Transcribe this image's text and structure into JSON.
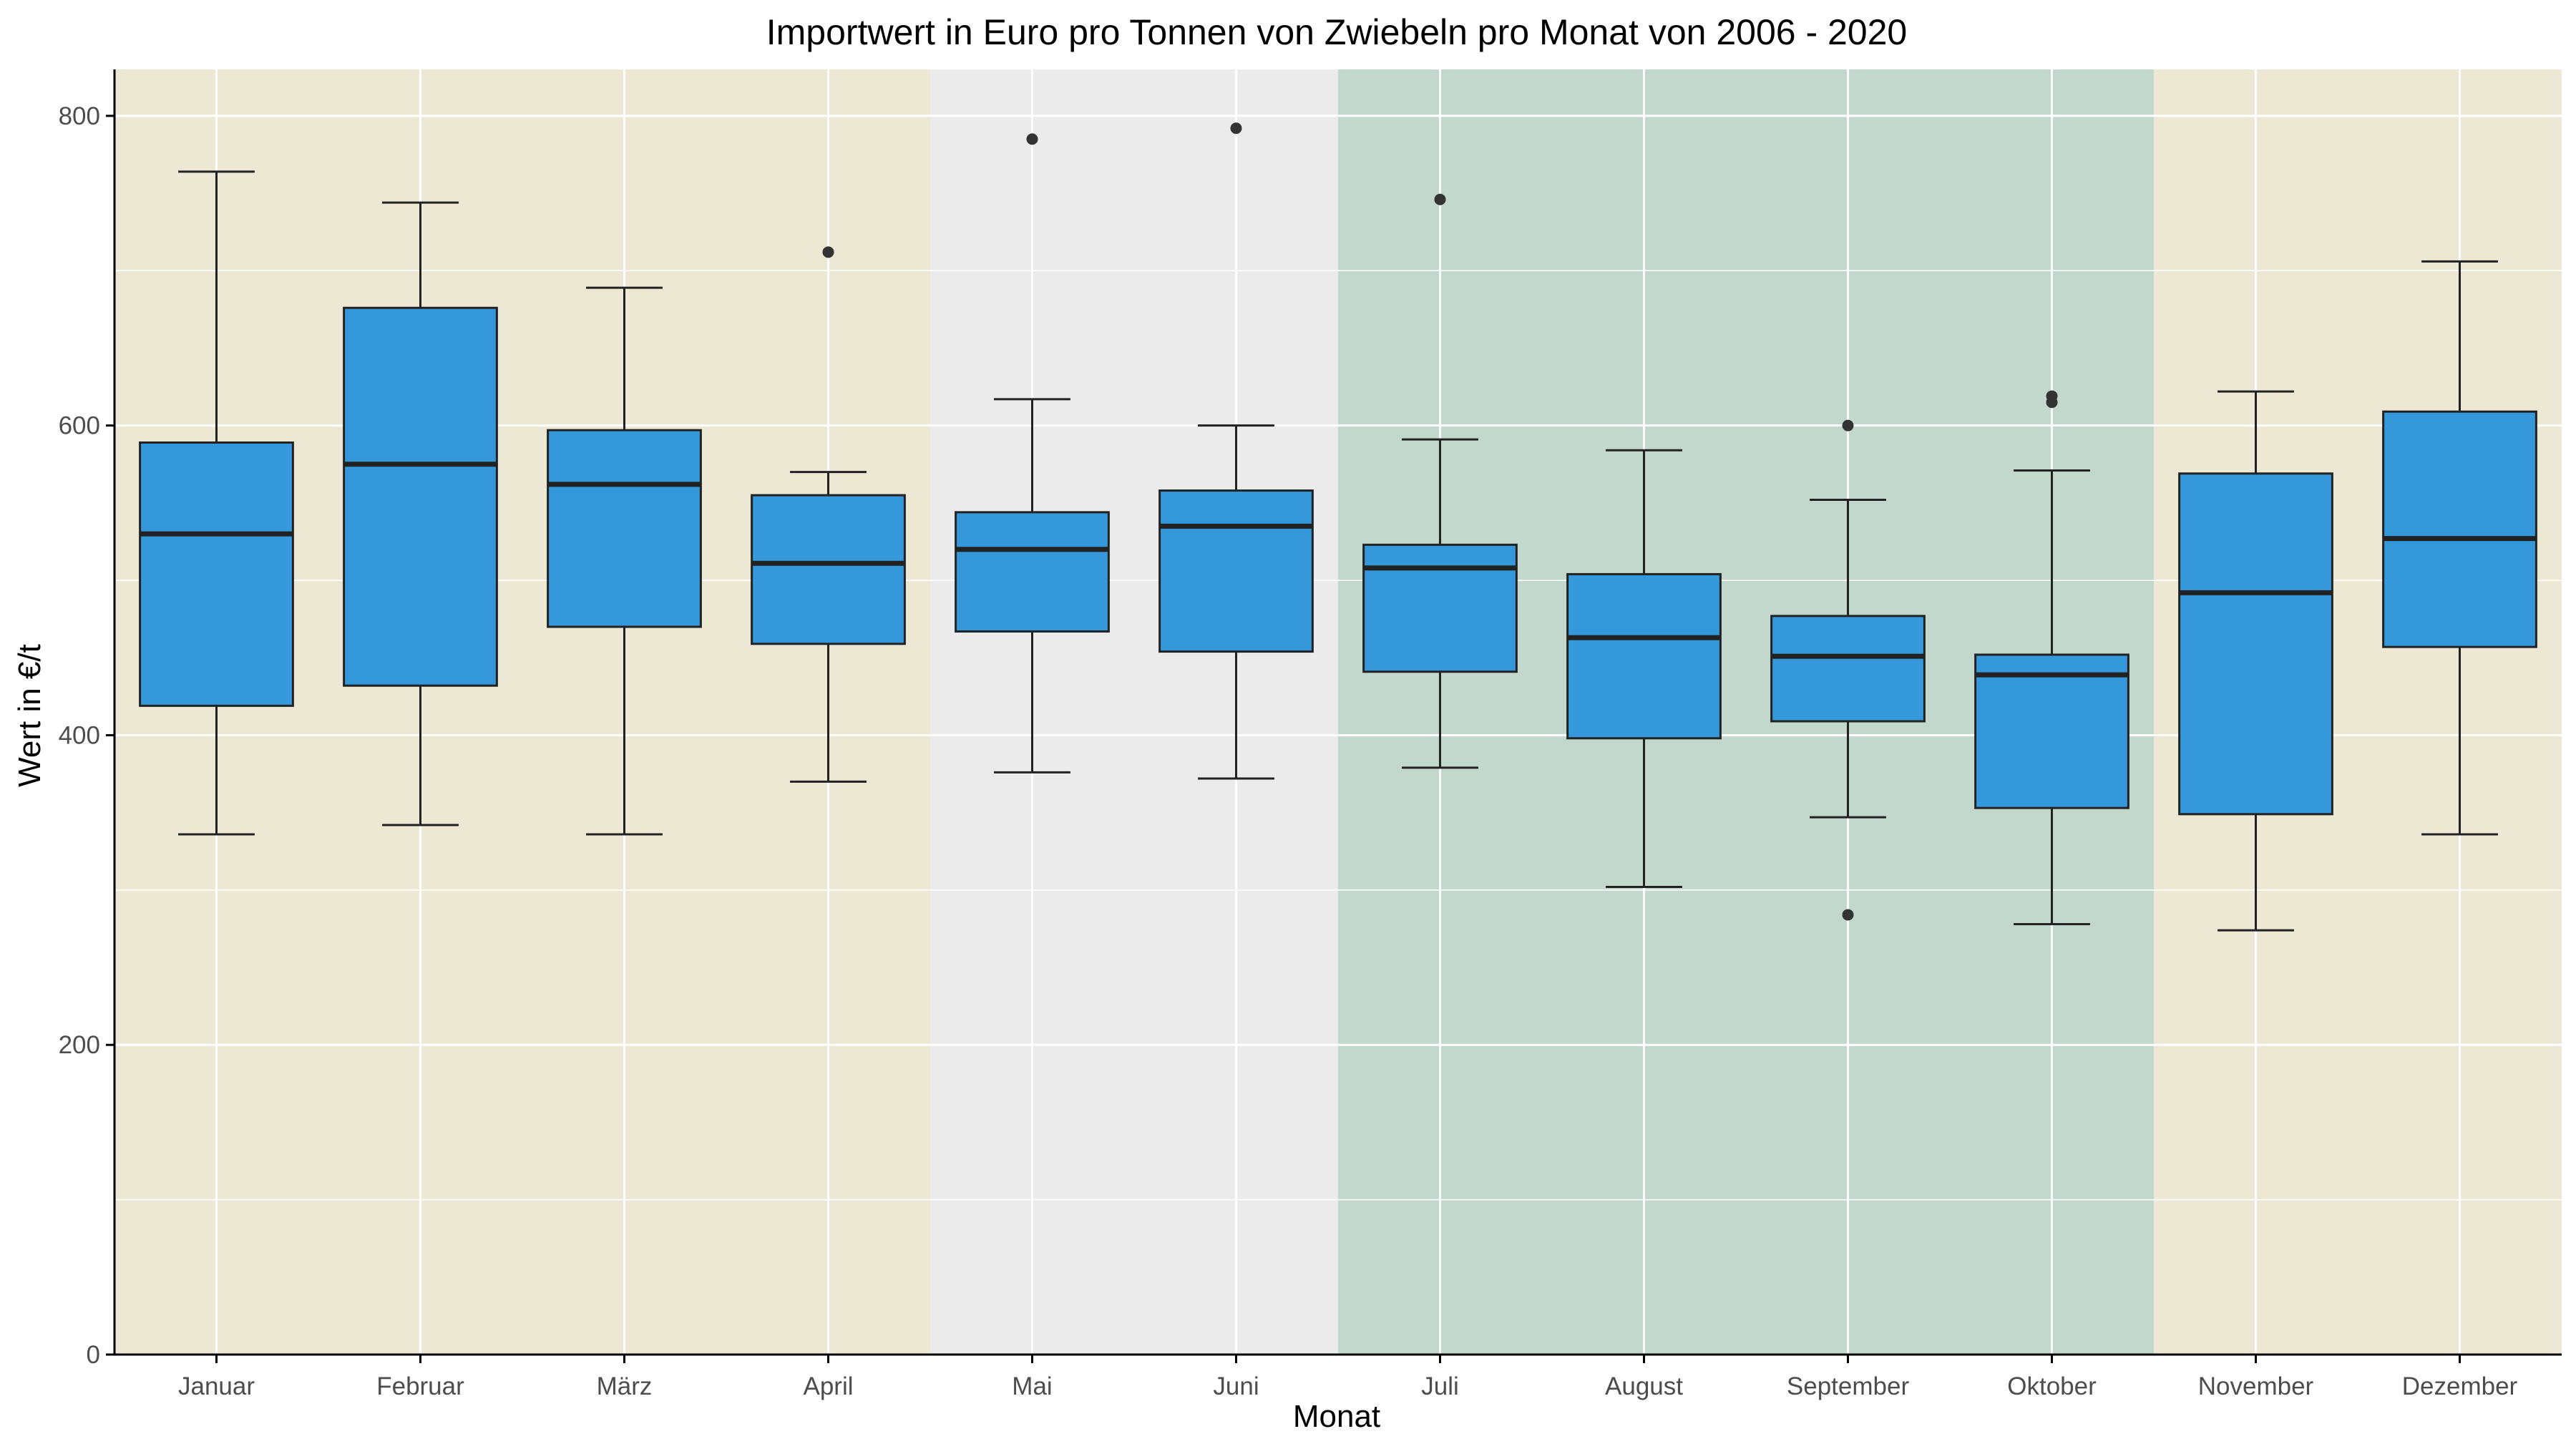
{
  "chart_data": {
    "type": "box",
    "title": "Importwert in Euro pro Tonnen von Zwiebeln pro Monat von 2006 - 2020",
    "xlabel": "Monat",
    "ylabel": "Wert in €/t",
    "ylim": [
      0,
      830
    ],
    "yticks": [
      0,
      200,
      400,
      600,
      800
    ],
    "grid": true,
    "box_color": "#3498db",
    "background_bands": [
      {
        "from": "Januar",
        "to": "April",
        "color": "#ede8d4"
      },
      {
        "from": "Mai",
        "to": "Juni",
        "color": "#ebebeb"
      },
      {
        "from": "Juli",
        "to": "Oktober",
        "color": "#c2d8cd"
      },
      {
        "from": "November",
        "to": "Dezember",
        "color": "#ede8d4"
      }
    ],
    "categories": [
      "Januar",
      "Februar",
      "März",
      "April",
      "Mai",
      "Juni",
      "Juli",
      "August",
      "September",
      "Oktober",
      "November",
      "Dezember"
    ],
    "boxes": [
      {
        "category": "Januar",
        "whisker_low": 336,
        "q1": 419,
        "median": 530,
        "q3": 589,
        "whisker_high": 764,
        "outliers": []
      },
      {
        "category": "Februar",
        "whisker_low": 342,
        "q1": 432,
        "median": 575,
        "q3": 676,
        "whisker_high": 744,
        "outliers": []
      },
      {
        "category": "März",
        "whisker_low": 336,
        "q1": 470,
        "median": 562,
        "q3": 597,
        "whisker_high": 689,
        "outliers": []
      },
      {
        "category": "April",
        "whisker_low": 370,
        "q1": 459,
        "median": 511,
        "q3": 555,
        "whisker_high": 570,
        "outliers": [
          712
        ]
      },
      {
        "category": "Mai",
        "whisker_low": 376,
        "q1": 467,
        "median": 520,
        "q3": 544,
        "whisker_high": 617,
        "outliers": [
          785
        ]
      },
      {
        "category": "Juni",
        "whisker_low": 372,
        "q1": 454,
        "median": 535,
        "q3": 558,
        "whisker_high": 600,
        "outliers": [
          792
        ]
      },
      {
        "category": "Juli",
        "whisker_low": 379,
        "q1": 441,
        "median": 508,
        "q3": 523,
        "whisker_high": 591,
        "outliers": [
          746
        ]
      },
      {
        "category": "August",
        "whisker_low": 302,
        "q1": 398,
        "median": 463,
        "q3": 504,
        "whisker_high": 584,
        "outliers": []
      },
      {
        "category": "September",
        "whisker_low": 347,
        "q1": 409,
        "median": 451,
        "q3": 477,
        "whisker_high": 552,
        "outliers": [
          600,
          284
        ]
      },
      {
        "category": "Oktober",
        "whisker_low": 278,
        "q1": 353,
        "median": 439,
        "q3": 452,
        "whisker_high": 571,
        "outliers": [
          619,
          615
        ]
      },
      {
        "category": "November",
        "whisker_low": 274,
        "q1": 349,
        "median": 492,
        "q3": 569,
        "whisker_high": 622,
        "outliers": []
      },
      {
        "category": "Dezember",
        "whisker_low": 336,
        "q1": 457,
        "median": 527,
        "q3": 609,
        "whisker_high": 706,
        "outliers": []
      }
    ]
  }
}
